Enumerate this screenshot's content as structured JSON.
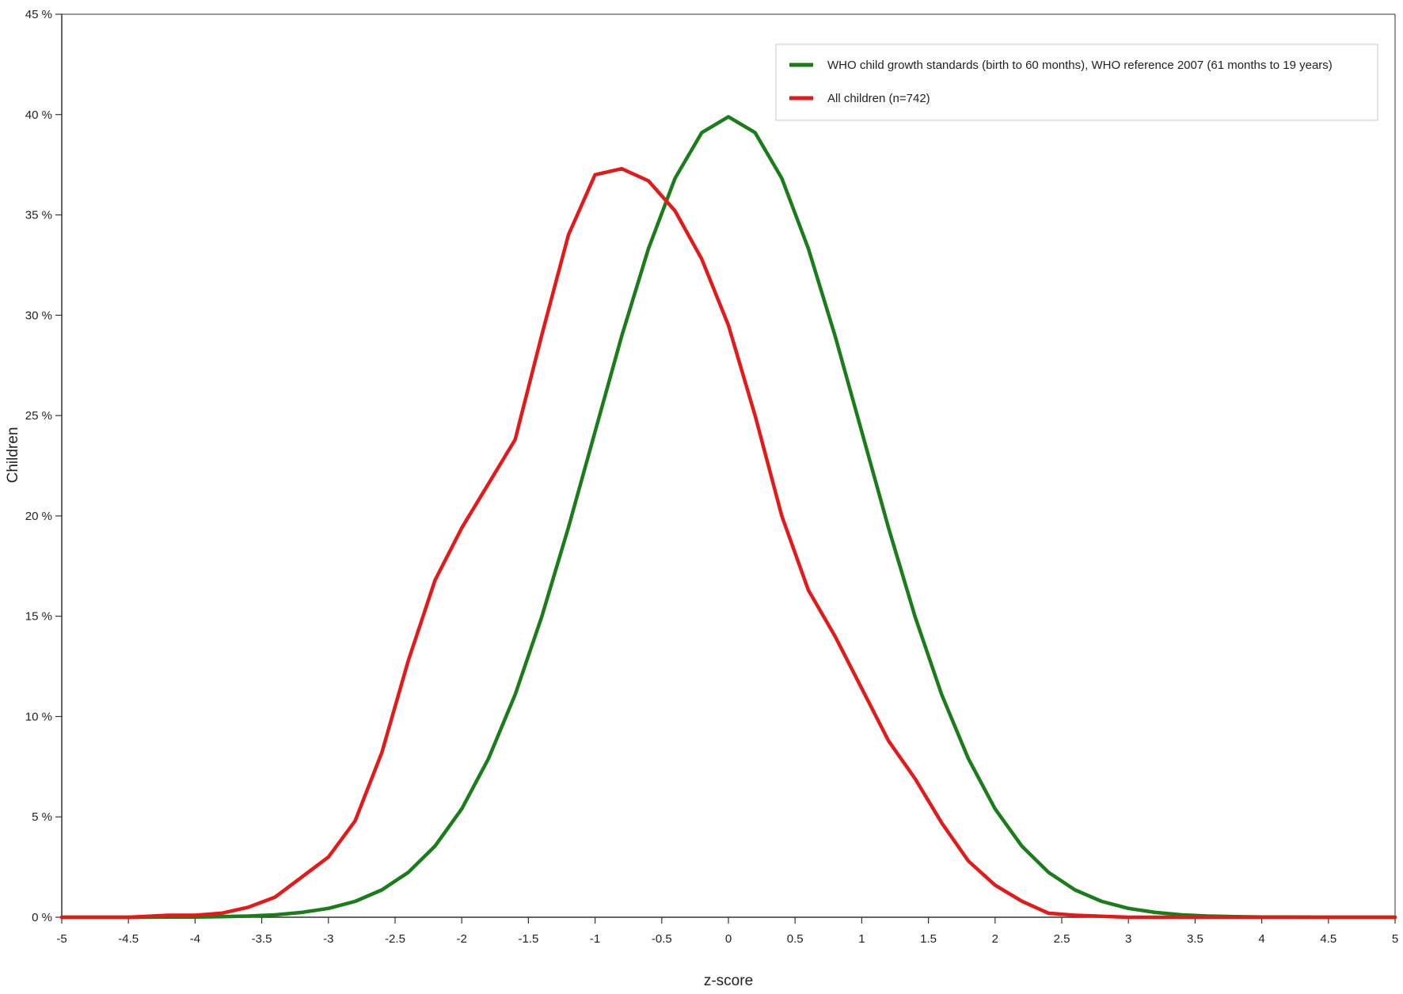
{
  "chart_data": {
    "type": "line",
    "title": "",
    "xlabel": "z-score",
    "ylabel": "Children",
    "xlim": [
      -5,
      5
    ],
    "ylim": [
      0,
      45
    ],
    "x_ticks": [
      "-5",
      "-4.5",
      "-4",
      "-3.5",
      "-3",
      "-2.5",
      "-2",
      "-1.5",
      "-1",
      "-0.5",
      "0",
      "0.5",
      "1",
      "1.5",
      "2",
      "2.5",
      "3",
      "3.5",
      "4",
      "4.5",
      "5"
    ],
    "y_ticks": [
      "0 %",
      "5 %",
      "10 %",
      "15 %",
      "20 %",
      "25 %",
      "30 %",
      "35 %",
      "40 %",
      "45 %"
    ],
    "grid": false,
    "legend_position": "top-right",
    "series": [
      {
        "name": "WHO child growth standards (birth to 60 months), WHO reference 2007 (61 months to 19 years)",
        "color": "#1a7d1a",
        "x": [
          -5,
          -4.8,
          -4.6,
          -4.4,
          -4.2,
          -4,
          -3.8,
          -3.6,
          -3.4,
          -3.2,
          -3,
          -2.8,
          -2.6,
          -2.4,
          -2.2,
          -2,
          -1.8,
          -1.6,
          -1.4,
          -1.2,
          -1,
          -0.8,
          -0.6,
          -0.4,
          -0.2,
          0,
          0.2,
          0.4,
          0.6,
          0.8,
          1,
          1.2,
          1.4,
          1.6,
          1.8,
          2,
          2.2,
          2.4,
          2.6,
          2.8,
          3,
          3.2,
          3.4,
          3.6,
          3.8,
          4,
          4.2,
          4.4,
          4.6,
          4.8,
          5
        ],
        "y": [
          0,
          0,
          0,
          0,
          0.01,
          0.01,
          0.03,
          0.06,
          0.12,
          0.24,
          0.44,
          0.79,
          1.36,
          2.24,
          3.55,
          5.4,
          7.9,
          11.09,
          14.97,
          19.42,
          24.2,
          28.97,
          33.32,
          36.83,
          39.1,
          39.89,
          39.1,
          36.83,
          33.32,
          28.97,
          24.2,
          19.42,
          14.97,
          11.09,
          7.9,
          5.4,
          3.55,
          2.24,
          1.36,
          0.79,
          0.44,
          0.24,
          0.12,
          0.06,
          0.03,
          0.01,
          0.01,
          0,
          0,
          0,
          0
        ]
      },
      {
        "name": "All children (n=742)",
        "color": "#e41a1a",
        "x": [
          -5,
          -4.5,
          -4.2,
          -4,
          -3.8,
          -3.6,
          -3.4,
          -3.2,
          -3,
          -2.8,
          -2.6,
          -2.4,
          -2.2,
          -2,
          -1.8,
          -1.6,
          -1.4,
          -1.2,
          -1,
          -0.8,
          -0.6,
          -0.4,
          -0.2,
          0,
          0.2,
          0.4,
          0.6,
          0.8,
          1,
          1.2,
          1.4,
          1.6,
          1.8,
          2,
          2.2,
          2.4,
          2.6,
          3,
          3.5,
          4,
          4.5,
          5
        ],
        "y": [
          0,
          0,
          0.1,
          0.1,
          0.2,
          0.5,
          1,
          2,
          3,
          4.8,
          8.2,
          12.8,
          16.8,
          19.4,
          21.6,
          23.8,
          29,
          34,
          37,
          37.3,
          36.7,
          35.2,
          32.8,
          29.5,
          25,
          20,
          16.3,
          14,
          11.4,
          8.8,
          6.9,
          4.7,
          2.8,
          1.6,
          0.8,
          0.2,
          0.1,
          0,
          0,
          0,
          0,
          0
        ]
      }
    ]
  }
}
